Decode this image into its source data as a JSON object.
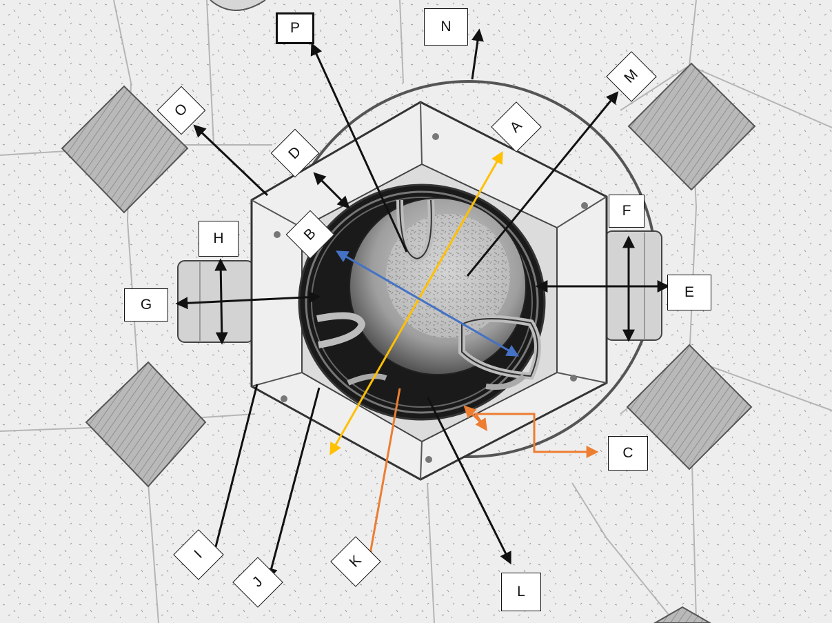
{
  "labels": {
    "A": "A",
    "B": "B",
    "C": "C",
    "D": "D",
    "E": "E",
    "F": "F",
    "G": "G",
    "H": "H",
    "I": "I",
    "J": "J",
    "K": "K",
    "L": "L",
    "M": "M",
    "N": "N",
    "O": "O",
    "P": "P"
  },
  "colors": {
    "black_arrow": "#111111",
    "orange_arrow": "#ed7d31",
    "yellow_arrow": "#ffc000",
    "blue_arrow": "#4472c4",
    "dark_tile": "#8a8a8a",
    "floor": "#ebebeb"
  }
}
